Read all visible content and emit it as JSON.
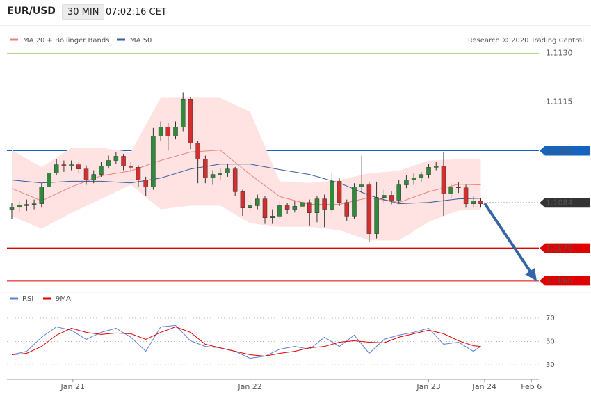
{
  "header": {
    "symbol": "EUR/USD",
    "interval": "30 MIN",
    "time": "07:02:16 CET"
  },
  "chart_data": [
    {
      "type": "candlestick",
      "credit": "Research © 2020 Trading Central",
      "xlim": [
        -0.65,
        70.8
      ],
      "ylim": [
        1.10575,
        1.11378
      ],
      "xticks": [
        {
          "value": 8.2,
          "label": "Jan 21"
        },
        {
          "value": 32,
          "label": "Jan 22"
        },
        {
          "value": 56,
          "label": "Jan 23"
        },
        {
          "value": 63.5,
          "label": "Jan 24"
        },
        {
          "value": 69.8,
          "label": "Feb 6"
        }
      ],
      "up_color": "#2e8b3a",
      "down_color": "#d32f2f",
      "x": [
        0,
        1,
        2,
        3,
        4,
        5,
        6,
        7,
        8,
        9,
        10,
        11,
        12,
        13,
        14,
        15,
        16,
        17,
        18,
        19,
        20,
        21,
        22,
        23,
        24,
        25,
        26,
        27,
        28,
        29,
        30,
        31,
        32,
        33,
        34,
        35,
        36,
        37,
        38,
        39,
        40,
        41,
        42,
        43,
        44,
        45,
        46,
        47,
        48,
        49,
        50,
        51,
        52,
        53,
        54,
        55,
        56,
        57,
        58,
        59,
        60,
        61,
        62,
        63
      ],
      "open": [
        1.1082,
        1.10826,
        1.10831,
        1.10835,
        1.10837,
        1.10889,
        1.10931,
        1.10957,
        1.10953,
        1.10957,
        1.10944,
        1.1091,
        1.10927,
        1.10953,
        1.1097,
        1.10983,
        1.10953,
        1.10949,
        1.1091,
        1.10889,
        1.11045,
        1.11073,
        1.11045,
        1.11073,
        1.11159,
        1.11024,
        1.10974,
        1.10916,
        1.10927,
        1.10931,
        1.10944,
        1.10874,
        1.10824,
        1.10831,
        1.10852,
        1.10794,
        1.10799,
        1.10831,
        1.1082,
        1.10829,
        1.10841,
        1.10809,
        1.10852,
        1.1082,
        1.10906,
        1.10841,
        1.10799,
        1.10889,
        1.10895,
        1.10745,
        1.10856,
        1.10863,
        1.10848,
        1.10895,
        1.1091,
        1.10916,
        1.10927,
        1.10949,
        1.10953,
        1.10867,
        1.10889,
        1.10886,
        1.10837,
        1.10846
      ],
      "high": [
        1.1084,
        1.10845,
        1.1085,
        1.1085,
        1.109,
        1.10945,
        1.10975,
        1.1097,
        1.1097,
        1.10965,
        1.10955,
        1.1094,
        1.10965,
        1.10985,
        1.10995,
        1.1099,
        1.10965,
        1.10955,
        1.1092,
        1.1107,
        1.1109,
        1.11085,
        1.1109,
        1.1118,
        1.11165,
        1.1103,
        1.10985,
        1.1094,
        1.10945,
        1.1096,
        1.1095,
        1.1088,
        1.10845,
        1.10865,
        1.1086,
        1.1082,
        1.10845,
        1.1084,
        1.10845,
        1.10855,
        1.1085,
        1.1086,
        1.10865,
        1.1093,
        1.10915,
        1.1085,
        1.109,
        1.10985,
        1.10905,
        1.10905,
        1.1088,
        1.10875,
        1.1091,
        1.10925,
        1.1093,
        1.10935,
        1.1096,
        1.10965,
        1.10995,
        1.109,
        1.10905,
        1.10895,
        1.1086,
        1.10855
      ],
      "low": [
        1.1079,
        1.1081,
        1.10815,
        1.1082,
        1.10825,
        1.1088,
        1.10925,
        1.10935,
        1.1094,
        1.1093,
        1.10895,
        1.109,
        1.1092,
        1.10945,
        1.1096,
        1.1094,
        1.10935,
        1.1089,
        1.1086,
        1.1088,
        1.1103,
        1.11,
        1.11035,
        1.1106,
        1.11005,
        1.109,
        1.109,
        1.10895,
        1.1091,
        1.1092,
        1.1086,
        1.108,
        1.1081,
        1.1082,
        1.10775,
        1.10775,
        1.1079,
        1.10805,
        1.1081,
        1.10815,
        1.1077,
        1.1078,
        1.10765,
        1.1081,
        1.1083,
        1.10785,
        1.1079,
        1.1087,
        1.1072,
        1.1073,
        1.1084,
        1.10835,
        1.1084,
        1.10885,
        1.10895,
        1.10905,
        1.10915,
        1.1094,
        1.108,
        1.10855,
        1.1087,
        1.10825,
        1.10825,
        1.10825
      ],
      "close": [
        1.10826,
        1.10831,
        1.10835,
        1.10837,
        1.10889,
        1.10931,
        1.10957,
        1.10953,
        1.10957,
        1.10944,
        1.1091,
        1.10927,
        1.10953,
        1.1097,
        1.10983,
        1.10953,
        1.10949,
        1.1091,
        1.10889,
        1.11045,
        1.11073,
        1.11045,
        1.11073,
        1.11159,
        1.11024,
        1.10974,
        1.10916,
        1.10927,
        1.10931,
        1.10944,
        1.10874,
        1.10824,
        1.10831,
        1.10852,
        1.10794,
        1.10799,
        1.10831,
        1.1082,
        1.10829,
        1.10841,
        1.10809,
        1.10852,
        1.1082,
        1.10906,
        1.10841,
        1.10799,
        1.10889,
        1.10895,
        1.10745,
        1.10856,
        1.10863,
        1.10848,
        1.10895,
        1.1091,
        1.10916,
        1.10927,
        1.10949,
        1.10953,
        1.10867,
        1.10889,
        1.10886,
        1.10837,
        1.10846,
        1.10837
      ],
      "overlays": [
        {
          "name": "MA 20 + Bollinger Bands",
          "color": "#f08080",
          "band_color": "#ffe3e3",
          "x": [
            0,
            4,
            8,
            12,
            16,
            20,
            24,
            28,
            32,
            36,
            40,
            44,
            48,
            52,
            56,
            60,
            63
          ],
          "values": [
            1.10884,
            1.10846,
            1.10889,
            1.10923,
            1.10938,
            1.1097,
            1.10996,
            1.11002,
            1.10927,
            1.10859,
            1.10835,
            1.10835,
            1.10856,
            1.10841,
            1.10874,
            1.10897,
            1.10895
          ],
          "upper": [
            1.11002,
            1.10949,
            1.11009,
            1.11009,
            1.10996,
            1.11163,
            1.11163,
            1.11163,
            1.1112,
            1.10906,
            1.10901,
            1.1091,
            1.10931,
            1.10938,
            1.1097,
            1.10974,
            1.10974
          ],
          "lower": [
            1.10799,
            1.1076,
            1.10809,
            1.10852,
            1.10895,
            1.1082,
            1.10831,
            1.10831,
            1.10777,
            1.10766,
            1.10766,
            1.10756,
            1.10724,
            1.10724,
            1.10781,
            1.10816,
            1.1082
          ]
        },
        {
          "name": "MA 50",
          "color": "#3a5ba0",
          "x": [
            0,
            4,
            8,
            12,
            16,
            20,
            24,
            28,
            32,
            36,
            40,
            44,
            48,
            52,
            56,
            60,
            63
          ],
          "values": [
            1.1091,
            1.10901,
            1.10906,
            1.10906,
            1.10901,
            1.10916,
            1.10944,
            1.10959,
            1.10959,
            1.10942,
            1.10927,
            1.10901,
            1.10863,
            1.10837,
            1.10841,
            1.10852,
            1.10854
          ]
        }
      ],
      "levels": [
        {
          "value": 1.113,
          "label": "1.1130",
          "color": "#7cb342",
          "style": "plain"
        },
        {
          "value": 1.1115,
          "label": "1.1115",
          "color": "#7cb342",
          "style": "plain"
        },
        {
          "value": 1.11,
          "label": "1.1100",
          "color": "#1565c0",
          "style": "box"
        },
        {
          "value": 1.1084,
          "label": "1.1084",
          "color": "#333333",
          "style": "current"
        },
        {
          "value": 1.107,
          "label": "1.1070",
          "color": "#e00000",
          "style": "box"
        },
        {
          "value": 1.106,
          "label": "1.1060",
          "color": "#e00000",
          "style": "box"
        }
      ]
    },
    {
      "type": "line",
      "xlim": [
        -0.65,
        70.8
      ],
      "ylim": [
        20,
        80
      ],
      "yticks": [
        30,
        50,
        70
      ],
      "grid": true,
      "series": [
        {
          "name": "RSI",
          "color": "#5b7fd6",
          "x": [
            0,
            2,
            4,
            6,
            8,
            10,
            12,
            14,
            16,
            18,
            20,
            22,
            24,
            26,
            28,
            30,
            32,
            34,
            36,
            38,
            40,
            42,
            44,
            46,
            48,
            50,
            52,
            54,
            56,
            58,
            60,
            62,
            63
          ],
          "values": [
            38.7,
            41.6,
            53.6,
            62.5,
            59.6,
            51.8,
            57.8,
            61.3,
            53.6,
            41.6,
            62.5,
            63.7,
            50.6,
            45.8,
            44.6,
            41.6,
            35.7,
            37.5,
            43.4,
            45.8,
            43.4,
            53.6,
            45.8,
            55.4,
            39.9,
            51.8,
            55.4,
            57.8,
            61.3,
            47.6,
            49.4,
            41.6,
            45.8
          ]
        },
        {
          "name": "9MA",
          "color": "#e00000",
          "x": [
            0,
            2,
            4,
            6,
            8,
            10,
            12,
            14,
            16,
            18,
            20,
            22,
            24,
            26,
            28,
            30,
            32,
            34,
            36,
            38,
            40,
            42,
            44,
            46,
            48,
            50,
            52,
            54,
            56,
            58,
            60,
            62,
            63
          ],
          "values": [
            38.7,
            39.9,
            45.8,
            55.4,
            61.3,
            57.8,
            56.0,
            57.2,
            56.6,
            51.8,
            57.8,
            62.5,
            57.8,
            47.6,
            44.6,
            41.6,
            38.7,
            37.5,
            39.9,
            41.6,
            44.6,
            45.8,
            49.4,
            50.6,
            49.4,
            48.8,
            53.6,
            56.6,
            59.6,
            56.6,
            50.6,
            46.4,
            45.8
          ]
        }
      ]
    }
  ]
}
